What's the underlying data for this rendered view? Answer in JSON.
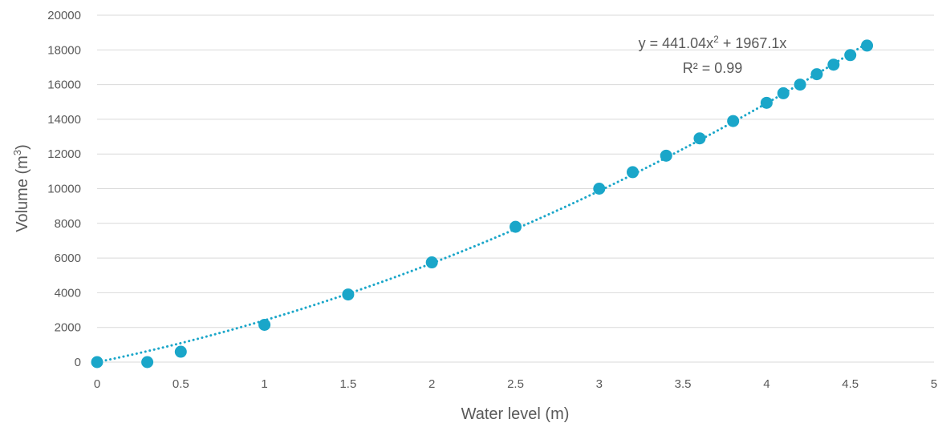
{
  "chart_data": {
    "type": "scatter",
    "title": "",
    "xlabel": "Water level (m)",
    "ylabel_main": "Volume (m",
    "ylabel_sup": "3",
    "ylabel_close": ")",
    "xlim": [
      0,
      5
    ],
    "ylim": [
      0,
      20000
    ],
    "xticks": [
      0,
      0.5,
      1,
      1.5,
      2,
      2.5,
      3,
      3.5,
      4,
      4.5,
      5
    ],
    "yticks": [
      0,
      2000,
      4000,
      6000,
      8000,
      10000,
      12000,
      14000,
      16000,
      18000,
      20000
    ],
    "grid": "horizontal",
    "legend": "none",
    "series": [
      {
        "x": [
          0,
          0.3,
          0.5,
          1,
          1.5,
          2,
          2.5,
          3,
          3.2,
          3.4,
          3.6,
          3.8,
          4,
          4.1,
          4.2,
          4.3,
          4.4,
          4.5,
          4.6
        ],
        "y": [
          0,
          0,
          600,
          2150,
          3900,
          5750,
          7800,
          10000,
          10950,
          11900,
          12900,
          13900,
          14950,
          15500,
          16000,
          16600,
          17150,
          17700,
          18250
        ],
        "color": "#1AA6C9"
      }
    ],
    "trendline": {
      "type": "polynomial",
      "a": 441.04,
      "b": 1967.1,
      "c": 0,
      "x_range": [
        0,
        4.6
      ],
      "color": "#1AA6C9",
      "style": "dotted"
    },
    "annotation": {
      "eq_prefix": "y = 441.04x",
      "eq_sup": "2",
      "eq_suffix": " + 1967.1x",
      "r2": "R² = 0.99"
    },
    "colors": {
      "grid": "#D9D9D9",
      "text": "#595959",
      "marker": "#1AA6C9"
    }
  }
}
